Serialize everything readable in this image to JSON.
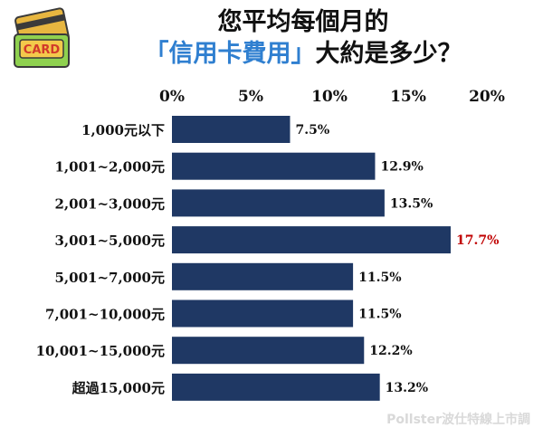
{
  "title_line1": "您平均每個月的",
  "title_line2_highlight": "「信用卡費用」",
  "title_line2_rest": "大約是多少？",
  "logo_text": "CARD",
  "watermark": "Pollster波仕特線上市調",
  "colors": {
    "bar": "#1f3864",
    "highlight_label": "#c00000",
    "title_highlight": "#2f7fd0"
  },
  "chart_data": {
    "type": "bar",
    "orientation": "horizontal",
    "categories": [
      "1,000元以下",
      "1,001~2,000元",
      "2,001~3,000元",
      "3,001~5,000元",
      "5,001~7,000元",
      "7,001~10,000元",
      "10,001~15,000元",
      "超過15,000元"
    ],
    "values": [
      7.5,
      12.9,
      13.5,
      17.7,
      11.5,
      11.5,
      12.2,
      13.2
    ],
    "value_labels": [
      "7.5%",
      "12.9%",
      "13.5%",
      "17.7%",
      "11.5%",
      "11.5%",
      "12.2%",
      "13.2%"
    ],
    "highlight_index": 3,
    "x_ticks": [
      "0%",
      "5%",
      "10%",
      "15%",
      "20%"
    ],
    "xlim": [
      0,
      20
    ],
    "x_axis_position": "top",
    "grid": false
  }
}
